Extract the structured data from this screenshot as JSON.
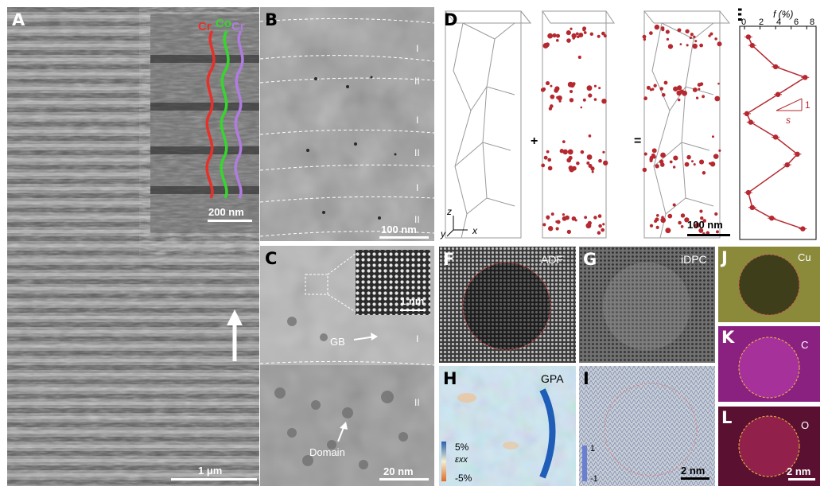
{
  "panels": {
    "A": {
      "label": "A",
      "scale": "1 μm",
      "inset_scale": "200 nm",
      "curve_labels": [
        "Cr",
        "Co",
        "Cr"
      ],
      "curve_colors": [
        "#e8302a",
        "#36d62e",
        "#b07ce0"
      ]
    },
    "B": {
      "label": "B",
      "scale": "100 nm",
      "regions": [
        "I",
        "II",
        "I",
        "II",
        "I",
        "II"
      ]
    },
    "C": {
      "label": "C",
      "scale": "20 nm",
      "inset_scale": "1 nm",
      "gb": "GB",
      "domain": "Domain",
      "regions": [
        "I",
        "II"
      ]
    },
    "D": {
      "label": "D",
      "scale": "100 nm",
      "plus": "+",
      "equals": "=",
      "axes": [
        "z",
        "y",
        "x"
      ]
    },
    "E": {
      "label": "E",
      "xlabel": "f (%)",
      "xticks": [
        "0",
        "2",
        "4",
        "6",
        "8"
      ],
      "slope_label": "s",
      "slope_value": "1"
    },
    "F": {
      "label": "F",
      "title": "ADF"
    },
    "G": {
      "label": "G",
      "title": "iDPC"
    },
    "H": {
      "label": "H",
      "title": "GPA",
      "cbar_top": "5%",
      "cbar_mid": "εxx",
      "cbar_bottom": "-5%"
    },
    "I": {
      "label": "I",
      "scale": "2 nm",
      "cbar_top": "1",
      "cbar_bottom": "-1"
    },
    "J": {
      "label": "J",
      "element": "Cu"
    },
    "K": {
      "label": "K",
      "element": "C"
    },
    "L": {
      "label": "L",
      "element": "O",
      "scale": "2 nm"
    }
  },
  "chart_data": {
    "type": "line",
    "xlabel": "f (%)",
    "xlim": [
      0,
      9
    ],
    "xticks": [
      0,
      2,
      4,
      6,
      8
    ],
    "series": [
      {
        "points": [
          {
            "x": 0.5,
            "y": 0.05
          },
          {
            "x": 1.0,
            "y": 0.09
          },
          {
            "x": 4.0,
            "y": 0.19
          },
          {
            "x": 7.8,
            "y": 0.24
          },
          {
            "x": 4.3,
            "y": 0.32
          },
          {
            "x": 0.3,
            "y": 0.41
          },
          {
            "x": 0.8,
            "y": 0.45
          },
          {
            "x": 4.0,
            "y": 0.52
          },
          {
            "x": 6.8,
            "y": 0.6
          },
          {
            "x": 5.5,
            "y": 0.65
          },
          {
            "x": 0.5,
            "y": 0.78
          },
          {
            "x": 1.0,
            "y": 0.85
          },
          {
            "x": 3.5,
            "y": 0.9
          },
          {
            "x": 7.5,
            "y": 0.95
          }
        ]
      }
    ]
  }
}
